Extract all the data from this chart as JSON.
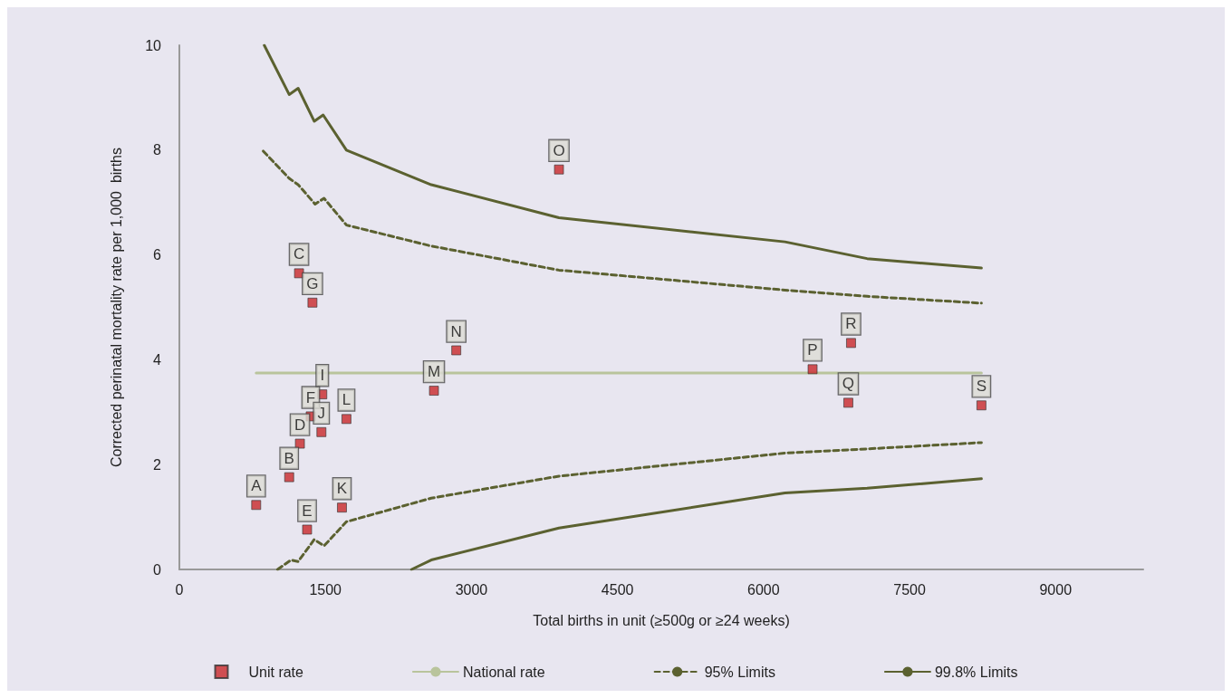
{
  "chart_data": {
    "type": "line",
    "xlabel": "Total births in unit (≥500g or ≥24 weeks)",
    "ylabel": "Corrected perinatal mortality rate per 1,000  births",
    "xlim": [
      0,
      9900
    ],
    "xticks": [
      0,
      1500,
      3000,
      4500,
      6000,
      7500,
      9000
    ],
    "ylim": [
      0,
      10
    ],
    "yticks": [
      0,
      2,
      4,
      6,
      8,
      10
    ],
    "grid": false,
    "legend": "bottom",
    "series": [
      {
        "name": "Unit rate",
        "type": "scatter",
        "marker": "square",
        "color": "#c8282a",
        "x": [
          789,
          1128,
          1229,
          1238,
          1312,
          1349,
          1367,
          1468,
          1459,
          1670,
          1716,
          2615,
          2844,
          3899,
          6504,
          6871,
          6899,
          8238
        ],
        "values": [
          1.23,
          1.76,
          5.65,
          2.4,
          0.76,
          2.92,
          5.09,
          3.34,
          2.62,
          1.18,
          2.87,
          3.41,
          4.18,
          7.63,
          3.82,
          3.18,
          4.32,
          3.13
        ],
        "value_labels": [
          "A",
          "B",
          "C",
          "D",
          "E",
          "F",
          "G",
          "I",
          "J",
          "K",
          "L",
          "M",
          "N",
          "O",
          "P",
          "Q",
          "R",
          "S"
        ]
      },
      {
        "name": "National rate",
        "marker": "none",
        "color": "#b9c49c",
        "line_style": "solid",
        "x": [
          789,
          8238
        ],
        "values": [
          3.75,
          3.75
        ]
      },
      {
        "name": "95% Limits",
        "marker": "none",
        "color": "#5b6130",
        "line_style": "dashed",
        "x": [
          862,
          1128,
          1220,
          1394,
          1486,
          1716,
          2587,
          3899,
          6220,
          7064,
          8238
        ],
        "values": [
          7.98,
          7.46,
          7.34,
          6.97,
          7.08,
          6.57,
          6.17,
          5.71,
          5.33,
          5.21,
          5.08
        ]
      },
      {
        "marker": "none",
        "color": "#5b6130",
        "line_style": "dashed",
        "x": [
          1009,
          1147,
          1220,
          1385,
          1486,
          1716,
          2587,
          3899,
          6220,
          7064,
          8238
        ],
        "values": [
          0,
          0.18,
          0.15,
          0.57,
          0.45,
          0.91,
          1.36,
          1.78,
          2.22,
          2.3,
          2.42
        ]
      },
      {
        "name": "99.8% Limits",
        "marker": "none",
        "color": "#5b6130",
        "line_style": "solid",
        "x": [
          872,
          1128,
          1220,
          1385,
          1477,
          1716,
          2587,
          3899,
          6220,
          7064,
          8238
        ],
        "values": [
          10,
          9.06,
          9.18,
          8.55,
          8.67,
          8,
          7.34,
          6.71,
          6.25,
          5.93,
          5.75
        ]
      },
      {
        "marker": "none",
        "color": "#5b6130",
        "line_style": "solid",
        "x": [
          2385,
          2587,
          3899,
          6220,
          7064,
          8238
        ],
        "values": [
          0,
          0.18,
          0.79,
          1.46,
          1.55,
          1.73
        ]
      }
    ]
  }
}
